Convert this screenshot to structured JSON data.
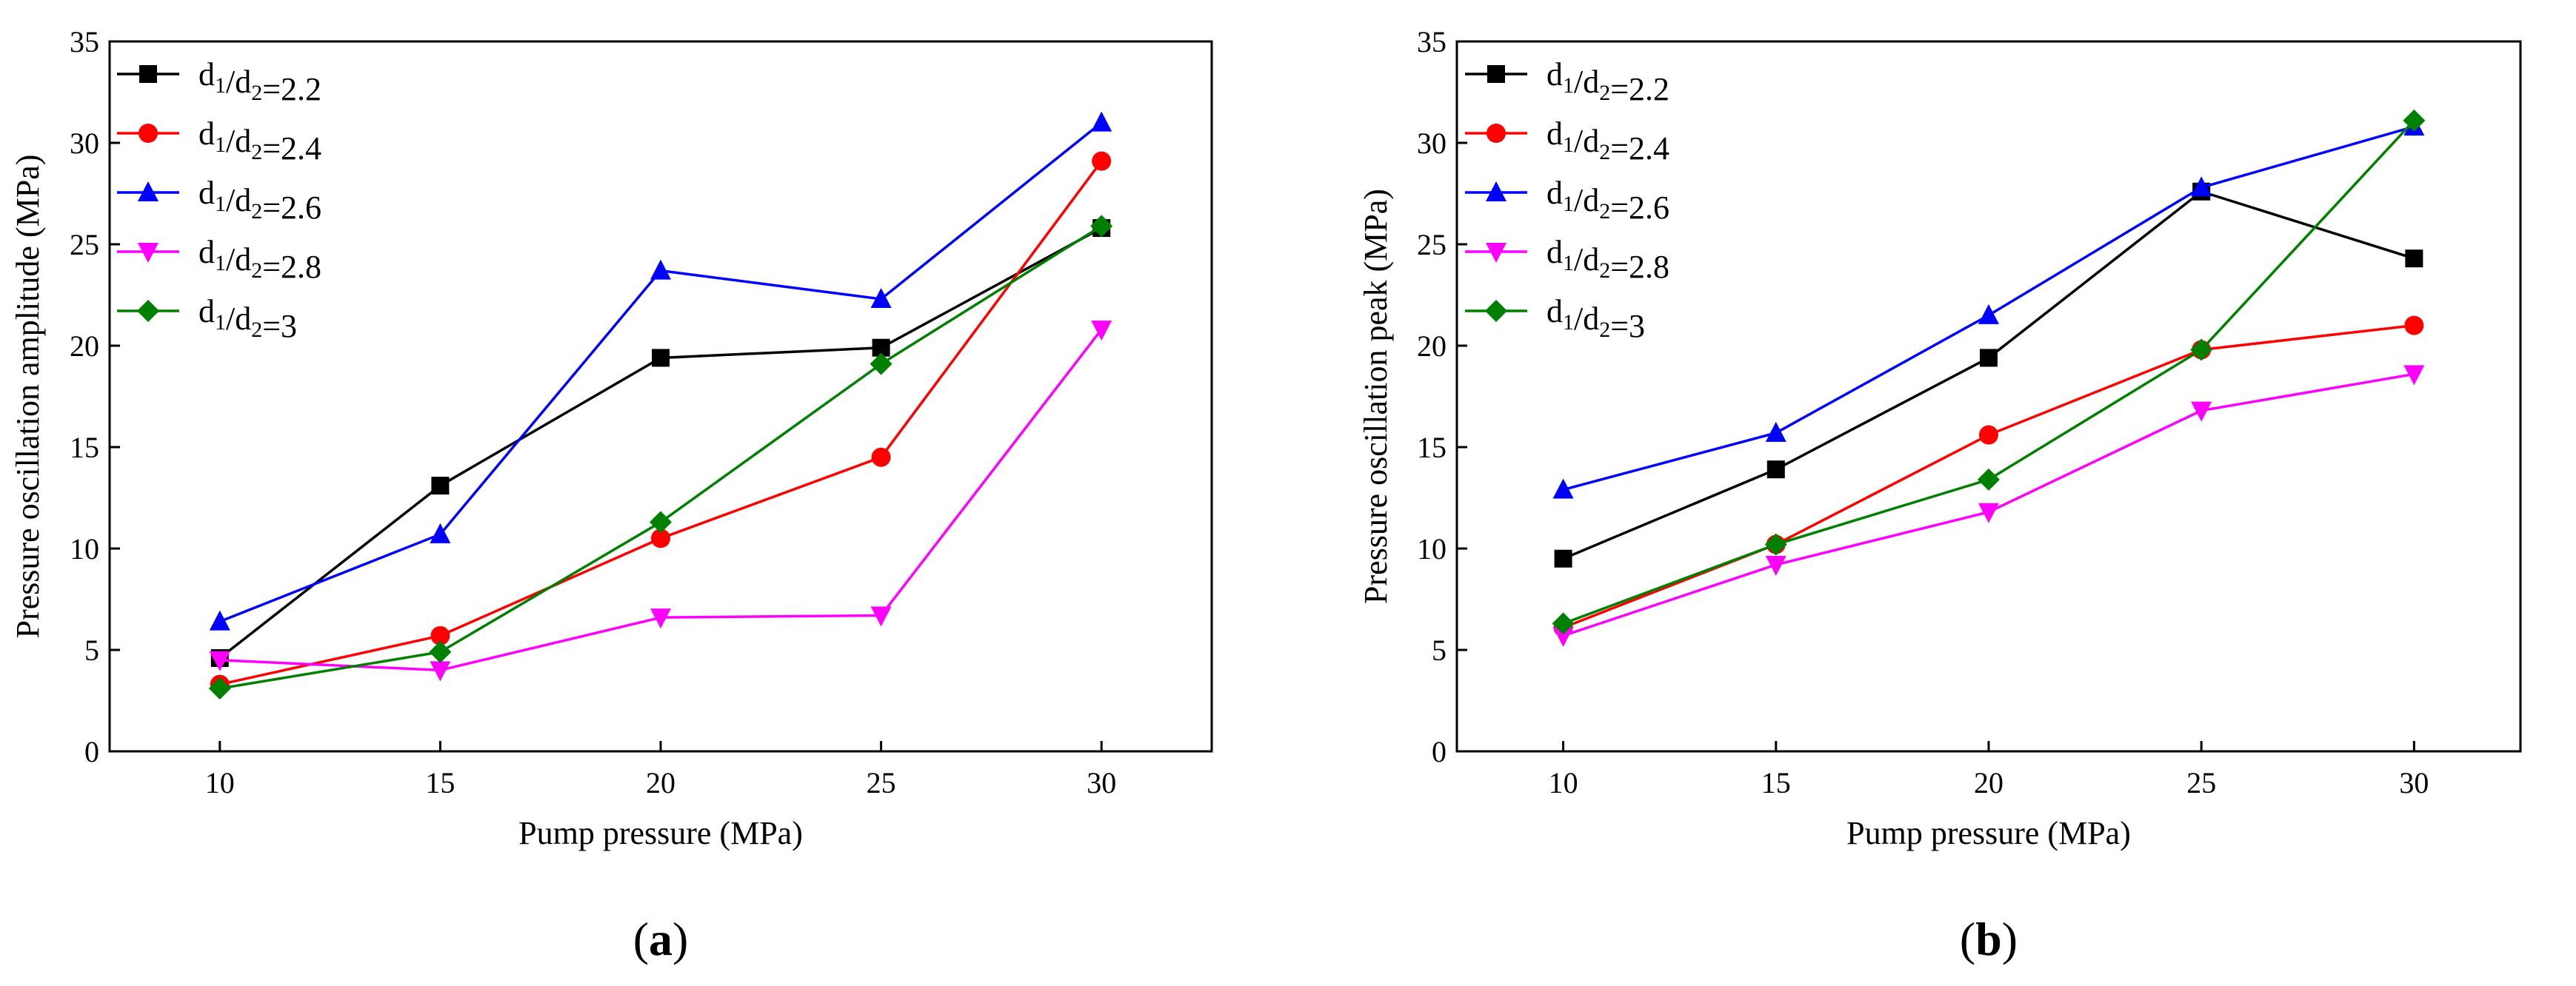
{
  "chart_data": [
    {
      "panel": "(a)",
      "panel_letter": "a",
      "type": "line",
      "title": "",
      "xlabel": "Pump pressure (MPa)",
      "ylabel": "Pressure  oscillation amplitude  (MPa)",
      "xlim": [
        7.5,
        32.5
      ],
      "ylim": [
        0,
        35
      ],
      "xticks": [
        10,
        15,
        20,
        25,
        30
      ],
      "yticks": [
        0,
        5,
        10,
        15,
        20,
        25,
        30,
        35
      ],
      "x": [
        10,
        15,
        20,
        25,
        30
      ],
      "legend_position": "top-left",
      "series": [
        {
          "name": "d1/d2=2.2",
          "value": "2.2",
          "color": "#000000",
          "marker": "square",
          "values": [
            4.6,
            13.1,
            19.4,
            19.9,
            25.8
          ]
        },
        {
          "name": "d1/d2=2.4",
          "value": "2.4",
          "color": "#ff0000",
          "marker": "circle",
          "values": [
            3.3,
            5.7,
            10.5,
            14.5,
            29.1
          ]
        },
        {
          "name": "d1/d2=2.6",
          "value": "2.6",
          "color": "#0000ff",
          "marker": "triangle-up",
          "values": [
            6.4,
            10.7,
            23.7,
            22.3,
            31.0
          ]
        },
        {
          "name": "d1/d2=2.8",
          "value": "2.8",
          "color": "#ff00ff",
          "marker": "triangle-down",
          "values": [
            4.5,
            4.0,
            6.6,
            6.7,
            20.8
          ]
        },
        {
          "name": "d1/d2=3",
          "value": "3",
          "color": "#008000",
          "marker": "diamond",
          "values": [
            3.1,
            4.9,
            11.3,
            19.1,
            25.9
          ]
        }
      ]
    },
    {
      "panel": "(b)",
      "panel_letter": "b",
      "type": "line",
      "title": "",
      "xlabel": "Pump pressure (MPa)",
      "ylabel": "Pressure  oscillation peak  (MPa)",
      "xlim": [
        7.5,
        32.5
      ],
      "ylim": [
        0,
        35
      ],
      "xticks": [
        10,
        15,
        20,
        25,
        30
      ],
      "yticks": [
        0,
        5,
        10,
        15,
        20,
        25,
        30,
        35
      ],
      "x": [
        10,
        15,
        20,
        25,
        30
      ],
      "legend_position": "top-left",
      "series": [
        {
          "name": "d1/d2=2.2",
          "value": "2.2",
          "color": "#000000",
          "marker": "square",
          "values": [
            9.5,
            13.9,
            19.4,
            27.6,
            24.3
          ]
        },
        {
          "name": "d1/d2=2.4",
          "value": "2.4",
          "color": "#ff0000",
          "marker": "circle",
          "values": [
            6.1,
            10.2,
            15.6,
            19.8,
            21.0
          ]
        },
        {
          "name": "d1/d2=2.6",
          "value": "2.6",
          "color": "#0000ff",
          "marker": "triangle-up",
          "values": [
            12.9,
            15.7,
            21.5,
            27.8,
            30.8
          ]
        },
        {
          "name": "d1/d2=2.8",
          "value": "2.8",
          "color": "#ff00ff",
          "marker": "triangle-down",
          "values": [
            5.7,
            9.2,
            11.8,
            16.8,
            18.6
          ]
        },
        {
          "name": "d1/d2=3",
          "value": "3",
          "color": "#008000",
          "marker": "diamond",
          "values": [
            6.3,
            10.2,
            13.4,
            19.8,
            31.1
          ]
        }
      ]
    }
  ]
}
